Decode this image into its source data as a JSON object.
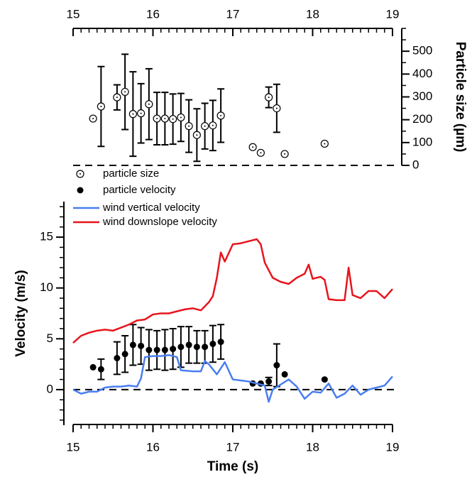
{
  "chart_data": [
    {
      "type": "scatter",
      "x_axis_side": "top",
      "y_axis_side": "right",
      "ylabel": "Particle size (µm)",
      "xlim": [
        15,
        19
      ],
      "xticks": [
        15,
        16,
        17,
        18,
        19
      ],
      "x_minor_divisions": 10,
      "ylim": [
        0,
        600
      ],
      "yticks": [
        0,
        100,
        200,
        300,
        400,
        500
      ],
      "y_minor_divisions": 2,
      "reference_line": 0,
      "series": [
        {
          "name": "particle size",
          "marker": "open-dot",
          "color": "#000000",
          "x": [
            15.25,
            15.35,
            15.55,
            15.65,
            15.75,
            15.85,
            15.95,
            16.05,
            16.15,
            16.25,
            16.35,
            16.45,
            16.55,
            16.65,
            16.75,
            16.85,
            17.25,
            17.35,
            17.45,
            17.55,
            17.65,
            18.15
          ],
          "values": [
            205,
            258,
            298,
            322,
            225,
            228,
            268,
            205,
            205,
            203,
            210,
            172,
            133,
            172,
            175,
            218,
            80,
            55,
            298,
            250,
            50,
            95
          ],
          "errors": [
            null,
            175,
            55,
            165,
            185,
            130,
            155,
            115,
            115,
            110,
            105,
            115,
            115,
            100,
            110,
            117,
            null,
            null,
            45,
            105,
            null,
            null
          ]
        }
      ]
    },
    {
      "type": "line",
      "x_axis_side": "bottom",
      "y_axis_side": "left",
      "xlabel": "Time (s)",
      "ylabel": "Velocity (m/s)",
      "xlim": [
        15,
        19
      ],
      "xticks": [
        15,
        16,
        17,
        18,
        19
      ],
      "x_minor_divisions": 10,
      "ylim": [
        -3.5,
        18.5
      ],
      "yticks": [
        0,
        5,
        10,
        15
      ],
      "y_minor_divisions": 5,
      "reference_line": 0,
      "series": [
        {
          "name": "particle velocity",
          "marker": "filled",
          "color": "#000000",
          "x": [
            15.25,
            15.35,
            15.55,
            15.65,
            15.75,
            15.85,
            15.95,
            16.05,
            16.15,
            16.25,
            16.35,
            16.45,
            16.55,
            16.65,
            16.75,
            16.85,
            17.25,
            17.35,
            17.45,
            17.55,
            17.65,
            18.15
          ],
          "values": [
            2.2,
            2.0,
            3.1,
            3.5,
            4.4,
            4.3,
            3.9,
            3.9,
            3.9,
            4.0,
            4.2,
            4.4,
            4.2,
            4.2,
            4.5,
            4.7,
            0.6,
            0.6,
            0.8,
            2.4,
            1.5,
            1.0
          ],
          "errors": [
            null,
            1.0,
            1.6,
            1.8,
            2.0,
            1.8,
            2.0,
            1.9,
            2.0,
            2.0,
            2.0,
            1.8,
            1.6,
            1.6,
            1.8,
            1.7,
            null,
            null,
            0.4,
            2.1,
            null,
            null
          ]
        },
        {
          "name": "wind vertical velocity",
          "color": "#4a7ef0",
          "x": [
            15.0,
            15.1,
            15.2,
            15.3,
            15.4,
            15.5,
            15.6,
            15.7,
            15.8,
            15.85,
            15.9,
            16.0,
            16.1,
            16.2,
            16.3,
            16.35,
            16.5,
            16.6,
            16.65,
            16.7,
            16.8,
            16.9,
            17.0,
            17.1,
            17.2,
            17.3,
            17.4,
            17.45,
            17.5,
            17.6,
            17.7,
            17.8,
            17.9,
            18.0,
            18.1,
            18.2,
            18.3,
            18.4,
            18.5,
            18.6,
            18.7,
            18.8,
            18.9,
            19.0
          ],
          "values": [
            0.0,
            -0.4,
            -0.2,
            -0.2,
            0.2,
            0.3,
            0.3,
            0.4,
            0.3,
            1.1,
            3.2,
            3.3,
            3.3,
            3.4,
            3.2,
            1.9,
            1.8,
            1.8,
            2.8,
            2.5,
            1.5,
            2.7,
            1.0,
            0.9,
            0.8,
            0.6,
            0.4,
            -1.2,
            0.0,
            0.5,
            1.0,
            0.3,
            -0.9,
            -0.2,
            -0.3,
            0.6,
            -0.8,
            -0.4,
            0.4,
            -0.5,
            0.0,
            0.2,
            0.4,
            1.3
          ]
        },
        {
          "name": "wind downslope velocity",
          "color": "#e8141b",
          "x": [
            15.0,
            15.1,
            15.2,
            15.3,
            15.4,
            15.5,
            15.6,
            15.7,
            15.8,
            15.9,
            16.0,
            16.1,
            16.2,
            16.3,
            16.4,
            16.5,
            16.6,
            16.7,
            16.75,
            16.8,
            16.85,
            16.9,
            17.0,
            17.1,
            17.2,
            17.3,
            17.35,
            17.4,
            17.5,
            17.6,
            17.7,
            17.8,
            17.9,
            17.95,
            18.0,
            18.1,
            18.15,
            18.2,
            18.3,
            18.4,
            18.45,
            18.5,
            18.6,
            18.7,
            18.8,
            18.9,
            19.0
          ],
          "values": [
            4.6,
            5.3,
            5.6,
            5.8,
            5.9,
            5.8,
            6.1,
            6.4,
            6.8,
            6.9,
            7.4,
            7.5,
            7.5,
            7.7,
            7.9,
            8.0,
            7.8,
            8.6,
            9.2,
            11.0,
            13.5,
            12.6,
            14.3,
            14.4,
            14.6,
            14.8,
            14.3,
            12.5,
            11.0,
            10.6,
            10.4,
            11.0,
            11.4,
            12.3,
            10.9,
            11.1,
            10.8,
            8.9,
            8.8,
            8.8,
            12.0,
            9.3,
            9.0,
            9.7,
            9.7,
            9.0,
            9.9
          ]
        }
      ]
    }
  ]
}
